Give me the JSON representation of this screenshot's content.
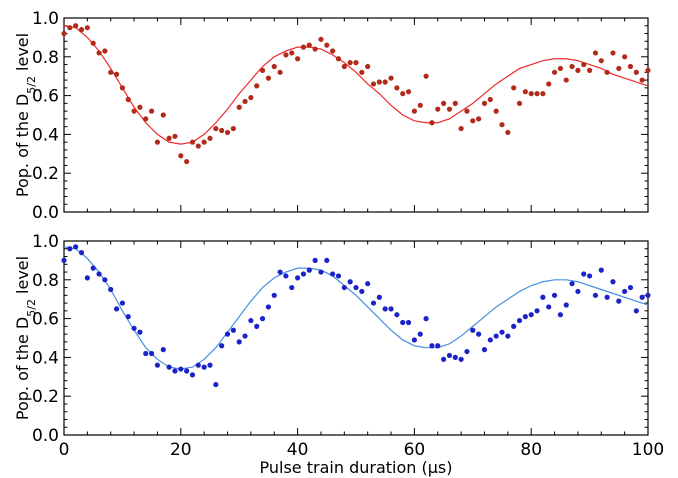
{
  "chart_data": [
    {
      "type": "scatter",
      "title": "",
      "ylabel": "Pop. of the D5/2 level",
      "ylabel_main": "Pop. of the D",
      "ylabel_sub": "5/2",
      "ylabel_tail": " level",
      "xlabel": "",
      "xlim": [
        0,
        100
      ],
      "ylim": [
        0,
        1.0
      ],
      "xticks": [
        0,
        20,
        40,
        60,
        80,
        100
      ],
      "xtick_labels": [],
      "yticks": [
        0.0,
        0.2,
        0.4,
        0.6,
        0.8,
        1.0
      ],
      "ytick_labels": [
        "0.0",
        "0.2",
        "0.4",
        "0.6",
        "0.8",
        "1.0"
      ],
      "marker_color": "#b22a1a",
      "line_color": "#ee2a2a",
      "series": [
        {
          "kind": "points",
          "x": [
            0,
            1,
            2,
            3,
            4,
            5,
            6,
            7,
            8,
            9,
            10,
            11,
            12,
            13,
            14,
            15,
            16,
            17,
            18,
            19,
            20,
            21,
            22,
            23,
            24,
            25,
            26,
            27,
            28,
            29,
            30,
            31,
            32,
            33,
            34,
            35,
            36,
            37,
            38,
            39,
            40,
            41,
            42,
            43,
            44,
            45,
            46,
            47,
            48,
            49,
            50,
            51,
            52,
            53,
            54,
            55,
            56,
            57,
            58,
            59,
            60,
            61,
            62,
            63,
            64,
            65,
            66,
            67,
            68,
            69,
            70,
            71,
            72,
            73,
            74,
            75,
            76,
            77,
            78,
            79,
            80,
            81,
            82,
            83,
            84,
            85,
            86,
            87,
            88,
            89,
            90,
            91,
            92,
            93,
            94,
            95,
            96,
            97,
            98,
            99,
            100
          ],
          "y": [
            0.92,
            0.95,
            0.96,
            0.94,
            0.95,
            0.87,
            0.82,
            0.83,
            0.72,
            0.71,
            0.64,
            0.58,
            0.52,
            0.54,
            0.48,
            0.52,
            0.36,
            0.5,
            0.38,
            0.39,
            0.29,
            0.26,
            0.36,
            0.34,
            0.36,
            0.38,
            0.43,
            0.42,
            0.41,
            0.43,
            0.54,
            0.57,
            0.59,
            0.65,
            0.73,
            0.69,
            0.75,
            0.72,
            0.81,
            0.82,
            0.79,
            0.85,
            0.86,
            0.84,
            0.89,
            0.86,
            0.83,
            0.79,
            0.75,
            0.77,
            0.77,
            0.72,
            0.75,
            0.66,
            0.67,
            0.67,
            0.69,
            0.64,
            0.61,
            0.62,
            0.52,
            0.55,
            0.7,
            0.46,
            0.53,
            0.56,
            0.53,
            0.56,
            0.43,
            0.52,
            0.47,
            0.48,
            0.56,
            0.58,
            0.52,
            0.45,
            0.41,
            0.64,
            0.56,
            0.62,
            0.61,
            0.61,
            0.61,
            0.66,
            0.72,
            0.74,
            0.68,
            0.75,
            0.73,
            0.76,
            0.73,
            0.82,
            0.78,
            0.72,
            0.82,
            0.74,
            0.8,
            0.75,
            0.72,
            0.68,
            0.73
          ]
        },
        {
          "kind": "fit",
          "x": [
            0,
            2,
            4,
            6,
            8,
            10,
            12,
            14,
            16,
            18,
            20,
            22,
            24,
            26,
            28,
            30,
            32,
            34,
            36,
            38,
            40,
            42,
            44,
            46,
            48,
            50,
            52,
            54,
            56,
            58,
            60,
            62,
            64,
            66,
            68,
            70,
            72,
            74,
            76,
            78,
            80,
            82,
            84,
            86,
            88,
            90,
            92,
            94,
            96,
            98,
            100
          ],
          "y": [
            0.96,
            0.95,
            0.9,
            0.83,
            0.74,
            0.64,
            0.54,
            0.46,
            0.4,
            0.36,
            0.35,
            0.36,
            0.4,
            0.46,
            0.53,
            0.61,
            0.68,
            0.75,
            0.8,
            0.83,
            0.85,
            0.85,
            0.84,
            0.81,
            0.77,
            0.72,
            0.66,
            0.61,
            0.55,
            0.5,
            0.47,
            0.46,
            0.46,
            0.48,
            0.52,
            0.56,
            0.61,
            0.66,
            0.7,
            0.74,
            0.76,
            0.78,
            0.79,
            0.79,
            0.78,
            0.76,
            0.74,
            0.71,
            0.69,
            0.67,
            0.65
          ]
        }
      ]
    },
    {
      "type": "scatter",
      "title": "",
      "ylabel": "Pop. of the D5/2 level",
      "ylabel_main": "Pop. of the D",
      "ylabel_sub": "5/2",
      "ylabel_tail": " level",
      "xlabel": "Pulse train duration (μs)",
      "xlim": [
        0,
        100
      ],
      "ylim": [
        0,
        1.0
      ],
      "xticks": [
        0,
        20,
        40,
        60,
        80,
        100
      ],
      "xtick_labels": [
        "0",
        "20",
        "40",
        "60",
        "80",
        "100"
      ],
      "yticks": [
        0.0,
        0.2,
        0.4,
        0.6,
        0.8,
        1.0
      ],
      "ytick_labels": [
        "0.0",
        "0.2",
        "0.4",
        "0.6",
        "0.8",
        "1.0"
      ],
      "marker_color": "#1a22c8",
      "line_color": "#4a8ee0",
      "series": [
        {
          "kind": "points",
          "x": [
            0,
            1,
            2,
            3,
            4,
            5,
            6,
            7,
            8,
            9,
            10,
            11,
            12,
            13,
            14,
            15,
            16,
            17,
            18,
            19,
            20,
            21,
            22,
            23,
            24,
            25,
            26,
            27,
            28,
            29,
            30,
            31,
            32,
            33,
            34,
            35,
            36,
            37,
            38,
            39,
            40,
            41,
            42,
            43,
            44,
            45,
            46,
            47,
            48,
            49,
            50,
            51,
            52,
            53,
            54,
            55,
            56,
            57,
            58,
            59,
            60,
            61,
            62,
            63,
            64,
            65,
            66,
            67,
            68,
            69,
            70,
            71,
            72,
            73,
            74,
            75,
            76,
            77,
            78,
            79,
            80,
            81,
            82,
            83,
            84,
            85,
            86,
            87,
            88,
            89,
            90,
            91,
            92,
            93,
            94,
            95,
            96,
            97,
            98,
            99,
            100
          ],
          "y": [
            0.9,
            0.96,
            0.97,
            0.94,
            0.81,
            0.86,
            0.83,
            0.8,
            0.75,
            0.65,
            0.68,
            0.61,
            0.55,
            0.53,
            0.42,
            0.42,
            0.36,
            0.44,
            0.35,
            0.33,
            0.34,
            0.33,
            0.31,
            0.36,
            0.35,
            0.36,
            0.26,
            0.46,
            0.52,
            0.54,
            0.48,
            0.51,
            0.59,
            0.56,
            0.6,
            0.66,
            0.72,
            0.84,
            0.82,
            0.76,
            0.81,
            0.83,
            0.85,
            0.9,
            0.84,
            0.9,
            0.83,
            0.82,
            0.76,
            0.79,
            0.76,
            0.74,
            0.78,
            0.68,
            0.71,
            0.65,
            0.65,
            0.62,
            0.58,
            0.58,
            0.49,
            0.52,
            0.6,
            0.46,
            0.46,
            0.39,
            0.41,
            0.4,
            0.39,
            0.43,
            0.54,
            0.52,
            0.44,
            0.49,
            0.51,
            0.53,
            0.51,
            0.56,
            0.59,
            0.61,
            0.62,
            0.64,
            0.71,
            0.66,
            0.72,
            0.62,
            0.67,
            0.78,
            0.74,
            0.83,
            0.82,
            0.72,
            0.85,
            0.71,
            0.79,
            0.69,
            0.74,
            0.76,
            0.64,
            0.71,
            0.72
          ]
        },
        {
          "kind": "fit",
          "x": [
            0,
            2,
            4,
            6,
            8,
            10,
            12,
            14,
            16,
            18,
            20,
            22,
            24,
            26,
            28,
            30,
            32,
            34,
            36,
            38,
            40,
            42,
            44,
            46,
            48,
            50,
            52,
            54,
            56,
            58,
            60,
            62,
            64,
            66,
            68,
            70,
            72,
            74,
            76,
            78,
            80,
            82,
            84,
            86,
            88,
            90,
            92,
            94,
            96,
            98,
            100
          ],
          "y": [
            0.97,
            0.96,
            0.91,
            0.84,
            0.75,
            0.64,
            0.54,
            0.45,
            0.39,
            0.35,
            0.34,
            0.35,
            0.39,
            0.45,
            0.53,
            0.61,
            0.69,
            0.76,
            0.81,
            0.84,
            0.86,
            0.86,
            0.85,
            0.82,
            0.77,
            0.72,
            0.66,
            0.6,
            0.54,
            0.49,
            0.46,
            0.45,
            0.45,
            0.47,
            0.51,
            0.56,
            0.61,
            0.66,
            0.7,
            0.74,
            0.77,
            0.79,
            0.8,
            0.8,
            0.79,
            0.77,
            0.75,
            0.73,
            0.71,
            0.69,
            0.67
          ]
        }
      ]
    }
  ]
}
